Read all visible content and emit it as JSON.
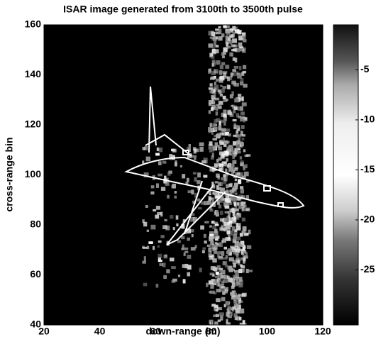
{
  "chart_data": {
    "type": "heatmap",
    "title": "ISAR image generated from 3100th to 3500th pulse",
    "xlabel": "down-range (m)",
    "ylabel": "cross-range bin",
    "xlim": [
      20,
      120
    ],
    "xticks": [
      20,
      40,
      60,
      80,
      100,
      120
    ],
    "ylim": [
      40,
      160
    ],
    "yticks": [
      40,
      60,
      80,
      100,
      120,
      140,
      160
    ],
    "clim": [
      -30.5,
      -0.5
    ],
    "cticks": [
      -5,
      -10,
      -15,
      -20,
      -25
    ]
  }
}
